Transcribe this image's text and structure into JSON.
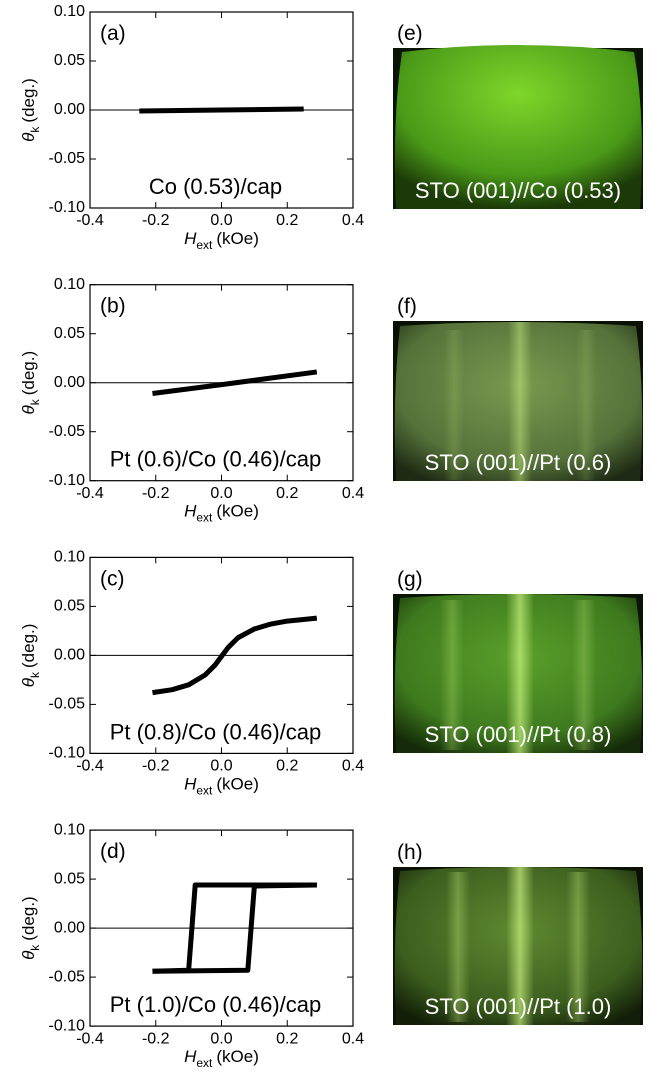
{
  "chart_data": [
    {
      "type": "line",
      "panel": "(a)",
      "annotation": "Co (0.53)/cap",
      "ylabel_symbol": "θ",
      "ylabel_sub": "k",
      "ylabel_unit": "(deg.)",
      "xlabel_symbol": "H",
      "xlabel_sub": "ext",
      "xlabel_unit": "(kOe)",
      "series": [
        {
          "color": "#000000",
          "x": [
            -0.25,
            0.0,
            0.25
          ],
          "values": [
            -0.001,
            0.0,
            0.001
          ]
        }
      ],
      "xlim": [
        -0.4,
        0.4
      ],
      "ylim": [
        -0.1,
        0.1
      ],
      "xticks": [
        -0.4,
        -0.2,
        {
          "value": 0,
          "label": "0.0"
        },
        0.2,
        0.4
      ],
      "yticks": [
        {
          "value": 0.1,
          "label": "0.10"
        },
        0.05,
        {
          "value": 0,
          "label": "0.00"
        },
        -0.05,
        {
          "value": -0.1,
          "label": "-0.10"
        }
      ]
    },
    {
      "type": "line",
      "panel": "(b)",
      "annotation": "Pt (0.6)/Co (0.46)/cap",
      "ylabel_symbol": "θ",
      "ylabel_sub": "k",
      "ylabel_unit": "(deg.)",
      "xlabel_symbol": "H",
      "xlabel_sub": "ext",
      "xlabel_unit": "(kOe)",
      "series": [
        {
          "color": "#000000",
          "x": [
            -0.21,
            0.0,
            0.29
          ],
          "values": [
            -0.011,
            -0.002,
            0.011
          ]
        }
      ],
      "xlim": [
        -0.4,
        0.4
      ],
      "ylim": [
        -0.1,
        0.1
      ],
      "xticks": [
        -0.4,
        -0.2,
        {
          "value": 0,
          "label": "0.0"
        },
        0.2,
        0.4
      ],
      "yticks": [
        {
          "value": 0.1,
          "label": "0.10"
        },
        0.05,
        {
          "value": 0,
          "label": "0.00"
        },
        -0.05,
        {
          "value": -0.1,
          "label": "-0.10"
        }
      ]
    },
    {
      "type": "line",
      "panel": "(c)",
      "annotation": "Pt (0.8)/Co (0.46)/cap",
      "ylabel_symbol": "θ",
      "ylabel_sub": "k",
      "ylabel_unit": "(deg.)",
      "xlabel_symbol": "H",
      "xlabel_sub": "ext",
      "xlabel_unit": "(kOe)",
      "series": [
        {
          "color": "#000000",
          "x": [
            -0.21,
            -0.15,
            -0.1,
            -0.05,
            -0.02,
            0,
            0.02,
            0.05,
            0.1,
            0.15,
            0.2,
            0.29
          ],
          "values": [
            -0.038,
            -0.035,
            -0.03,
            -0.02,
            -0.01,
            -0.001,
            0.008,
            0.018,
            0.027,
            0.032,
            0.035,
            0.038
          ]
        }
      ],
      "xlim": [
        -0.4,
        0.4
      ],
      "ylim": [
        -0.1,
        0.1
      ],
      "xticks": [
        -0.4,
        -0.2,
        {
          "value": 0,
          "label": "0.0"
        },
        0.2,
        0.4
      ],
      "yticks": [
        {
          "value": 0.1,
          "label": "0.10"
        },
        0.05,
        {
          "value": 0,
          "label": "0.00"
        },
        -0.05,
        {
          "value": -0.1,
          "label": "-0.10"
        }
      ]
    },
    {
      "type": "line",
      "panel": "(d)",
      "annotation": "Pt (1.0)/Co (0.46)/cap",
      "ylabel_symbol": "θ",
      "ylabel_sub": "k",
      "ylabel_unit": "(deg.)",
      "xlabel_symbol": "H",
      "xlabel_sub": "ext",
      "xlabel_unit": "(kOe)",
      "series": [
        {
          "color": "#000000",
          "x": [
            0.29,
            -0.08,
            -0.09,
            -0.1,
            -0.21
          ],
          "values": [
            0.044,
            0.044,
            0,
            -0.043,
            -0.044
          ]
        },
        {
          "color": "#000000",
          "x": [
            -0.21,
            0.08,
            0.09,
            0.1,
            0.29
          ],
          "values": [
            -0.044,
            -0.043,
            0,
            0.043,
            0.044
          ]
        }
      ],
      "xlim": [
        -0.4,
        0.4
      ],
      "ylim": [
        -0.1,
        0.1
      ],
      "xticks": [
        -0.4,
        -0.2,
        {
          "value": 0,
          "label": "0.0"
        },
        0.2,
        0.4
      ],
      "yticks": [
        {
          "value": 0.1,
          "label": "0.10"
        },
        0.05,
        {
          "value": 0,
          "label": "0.00"
        },
        -0.05,
        {
          "value": -0.1,
          "label": "-0.10"
        }
      ]
    }
  ],
  "images": [
    {
      "panel": "(e)",
      "caption": "STO (001)//Co (0.53)"
    },
    {
      "panel": "(f)",
      "caption": "STO (001)//Pt (0.6)"
    },
    {
      "panel": "(g)",
      "caption": "STO (001)//Pt (0.8)"
    },
    {
      "panel": "(h)",
      "caption": "STO (001)//Pt (1.0)"
    }
  ]
}
